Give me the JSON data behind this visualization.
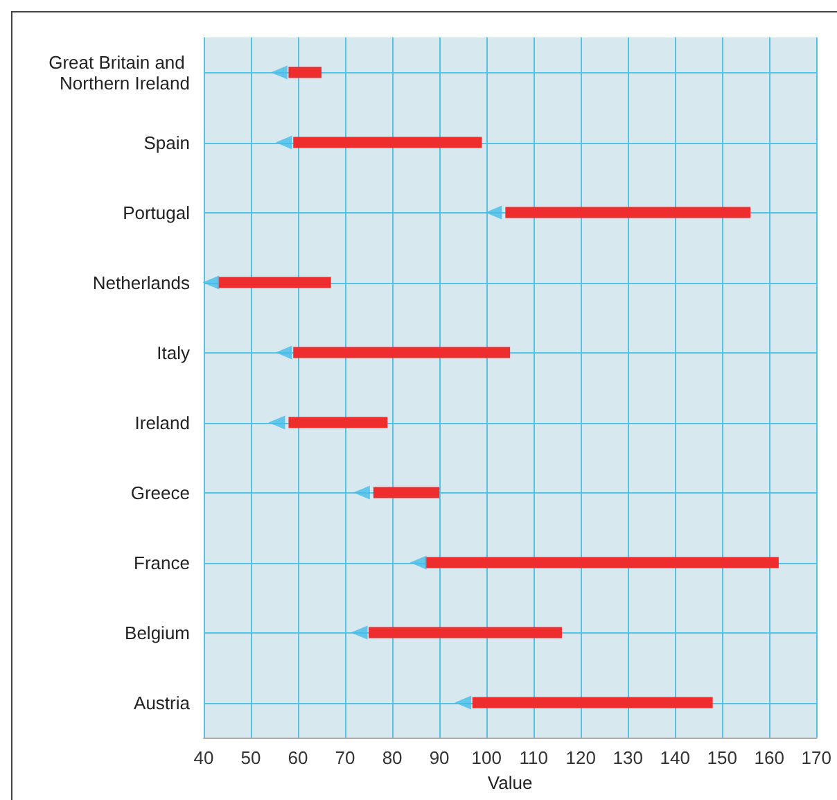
{
  "chart_data": {
    "type": "bar",
    "orientation": "horizontal",
    "xlabel": "Value",
    "categories": [
      "Great Britain and Northern Ireland",
      "Spain",
      "Portugal",
      "Netherlands",
      "Italy",
      "Ireland",
      "Greece",
      "France",
      "Belgium",
      "Austria"
    ],
    "series": [
      {
        "type": "bar",
        "color": "#ee2d2f",
        "base": [
          58,
          59,
          104,
          43,
          59,
          58,
          76,
          87,
          75,
          97
        ],
        "values": [
          7,
          40,
          52,
          24,
          46,
          21,
          14,
          75,
          41,
          51
        ]
      },
      {
        "type": "scatter",
        "color": "#45bce8",
        "marker": "triangle",
        "values": [
          56,
          57,
          101.5,
          41.5,
          57,
          55.5,
          73.5,
          85.5,
          73,
          95
        ]
      }
    ],
    "xlim": [
      40,
      170
    ],
    "xticks": [
      40,
      50,
      60,
      70,
      80,
      90,
      100,
      110,
      120,
      130,
      140,
      150,
      160,
      170
    ],
    "grid": true
  }
}
